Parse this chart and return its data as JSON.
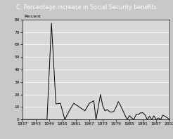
{
  "title": "C. Percentage increase in Social Security benefits",
  "ylabel_label": "Percent",
  "xlim": [
    1937,
    2003
  ],
  "ylim": [
    0,
    80
  ],
  "yticks": [
    0,
    10,
    20,
    30,
    40,
    50,
    60,
    70,
    80
  ],
  "xticks": [
    1937,
    1943,
    1949,
    1955,
    1961,
    1967,
    1973,
    1979,
    1985,
    1991,
    1997,
    2003
  ],
  "plot_bg_color": "#d8d8d8",
  "title_bg_color": "#888888",
  "outer_bg_color": "#c8c8c8",
  "line_color": "#000000",
  "grid_color": "#ffffff",
  "title_text_color": "#ffffff",
  "years": [
    1937,
    1940,
    1948,
    1950,
    1952,
    1954,
    1956,
    1958,
    1960,
    1965,
    1967,
    1969,
    1970,
    1971,
    1972,
    1973,
    1974,
    1975,
    1976,
    1977,
    1978,
    1979,
    1980,
    1981,
    1982,
    1983,
    1984,
    1985,
    1986,
    1987,
    1988,
    1989,
    1990,
    1991,
    1992,
    1993,
    1994,
    1995,
    1996,
    1997,
    1998,
    1999,
    2000,
    2001,
    2002,
    2003
  ],
  "values": [
    0,
    0,
    0,
    77,
    12.5,
    13,
    0,
    7,
    13,
    7,
    13,
    15,
    0,
    10,
    20,
    11,
    7,
    8,
    6.4,
    5.9,
    6.5,
    9.9,
    14.3,
    11.2,
    7.4,
    3.5,
    0,
    3.1,
    1.3,
    0,
    4,
    4,
    5.4,
    5.4,
    3.7,
    0,
    2.6,
    0,
    2.9,
    0,
    1.3,
    0,
    3.5,
    2.6,
    1.4,
    0
  ]
}
